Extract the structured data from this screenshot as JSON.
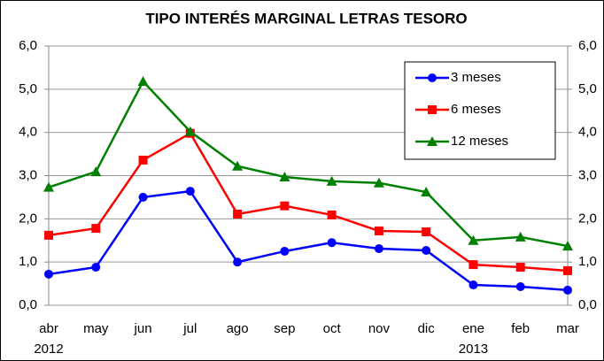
{
  "chart_data": {
    "type": "line",
    "title": "TIPO INTERÉS MARGINAL LETRAS TESORO",
    "categories": [
      "abr",
      "may",
      "jun",
      "jul",
      "ago",
      "sep",
      "oct",
      "nov",
      "dic",
      "ene",
      "feb",
      "mar"
    ],
    "years": [
      "2012",
      null,
      null,
      null,
      null,
      null,
      null,
      null,
      null,
      "2013",
      null,
      null
    ],
    "series": [
      {
        "name": "3 meses",
        "color": "#0000ff",
        "marker": "circle",
        "values": [
          0.72,
          0.88,
          2.5,
          2.64,
          1.0,
          1.25,
          1.45,
          1.31,
          1.27,
          0.47,
          0.43,
          0.35
        ]
      },
      {
        "name": "6 meses",
        "color": "#ff0000",
        "marker": "square",
        "values": [
          1.62,
          1.78,
          3.36,
          3.98,
          2.11,
          2.3,
          2.09,
          1.72,
          1.7,
          0.94,
          0.88,
          0.8
        ]
      },
      {
        "name": "12 meses",
        "color": "#008000",
        "marker": "triangle",
        "values": [
          2.73,
          3.09,
          5.18,
          4.02,
          3.22,
          2.97,
          2.87,
          2.83,
          2.62,
          1.5,
          1.58,
          1.37
        ]
      }
    ],
    "ylim": [
      0,
      6
    ],
    "yticks": [
      {
        "value": 0,
        "label": "0,0"
      },
      {
        "value": 1,
        "label": "1,0"
      },
      {
        "value": 2,
        "label": "2,0"
      },
      {
        "value": 3,
        "label": "3,0"
      },
      {
        "value": 4,
        "label": "4,0"
      },
      {
        "value": 5,
        "label": "5,0"
      },
      {
        "value": 6,
        "label": "6,0"
      }
    ],
    "y2lim": [
      0,
      6
    ],
    "y2ticks": [
      {
        "value": 0,
        "label": "0,0"
      },
      {
        "value": 1,
        "label": "1,0"
      },
      {
        "value": 2,
        "label": "2,0"
      },
      {
        "value": 3,
        "label": "3,0"
      },
      {
        "value": 4,
        "label": "4,0"
      },
      {
        "value": 5,
        "label": "5,0"
      },
      {
        "value": 6,
        "label": "6,0"
      }
    ],
    "grid": true,
    "legend": "upper right"
  }
}
